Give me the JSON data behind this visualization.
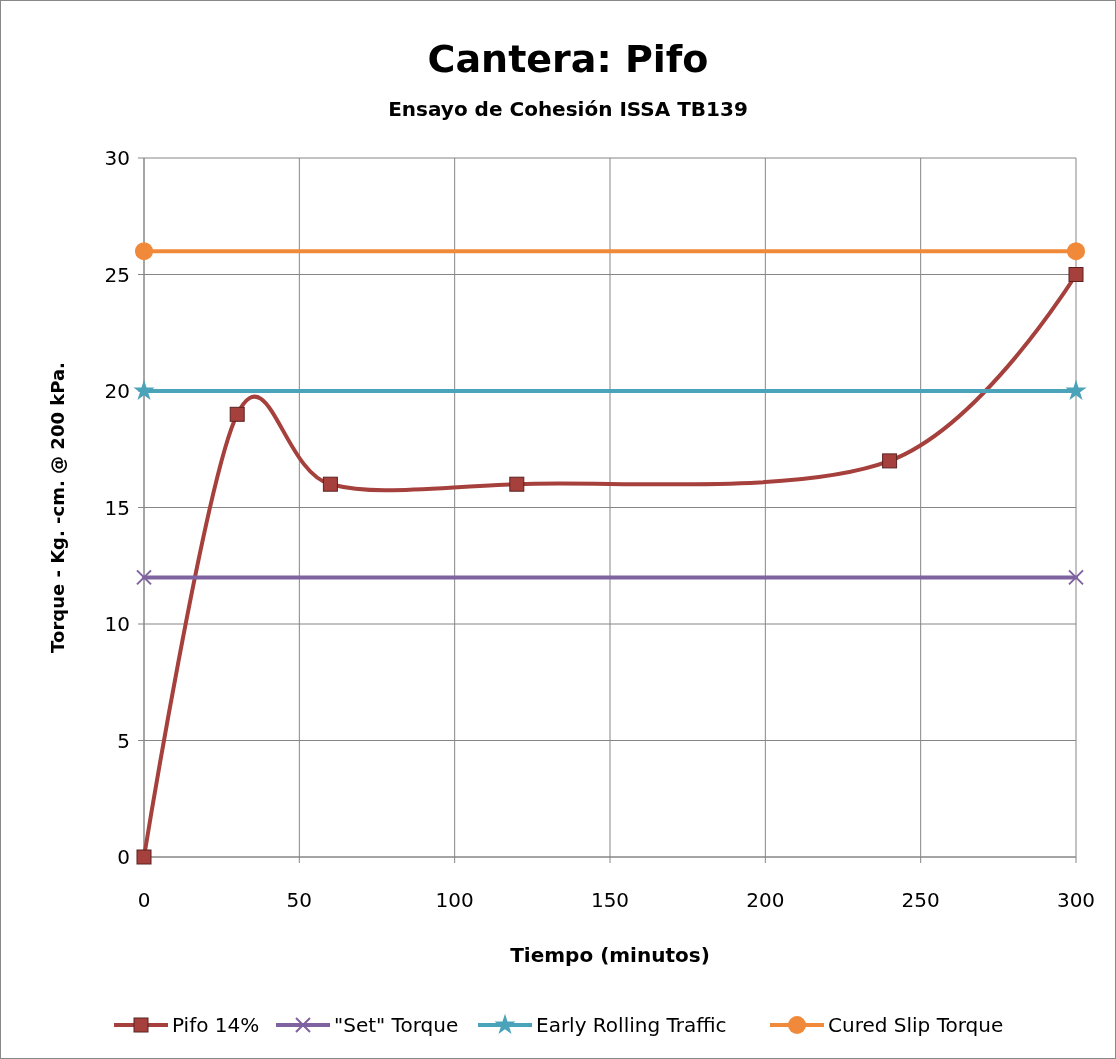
{
  "chart_data": {
    "type": "line",
    "title": "Cantera: Pifo",
    "subtitle": "Ensayo de Cohesión ISSA TB139",
    "xlabel": "Tiempo (minutos)",
    "ylabel": "Torque - Kg. -cm. @ 200 kPa.",
    "xlim": [
      0,
      300
    ],
    "xticks": [
      0,
      50,
      100,
      150,
      200,
      250,
      300
    ],
    "ylim": [
      0,
      30
    ],
    "yticks": [
      0,
      5,
      10,
      15,
      20,
      25,
      30
    ],
    "grid": true,
    "legend": "bottom",
    "line_style": "solid",
    "series": [
      {
        "name": "Pifo 14%",
        "color": "#a5403c",
        "marker": "square",
        "x": [
          0,
          30,
          60,
          120,
          240,
          300
        ],
        "values": [
          0,
          19,
          16,
          16,
          17,
          25
        ]
      },
      {
        "name": "\"Set\" Torque",
        "color": "#7f62a0",
        "marker": "cross",
        "x": [
          0,
          300
        ],
        "values": [
          12,
          12
        ]
      },
      {
        "name": "Early Rolling Traffic",
        "color": "#4aa3b8",
        "marker": "star",
        "x": [
          0,
          300
        ],
        "values": [
          20,
          20
        ]
      },
      {
        "name": "Cured Slip Torque",
        "color": "#f08a3a",
        "marker": "circle",
        "x": [
          0,
          300
        ],
        "values": [
          26,
          26
        ]
      }
    ]
  }
}
